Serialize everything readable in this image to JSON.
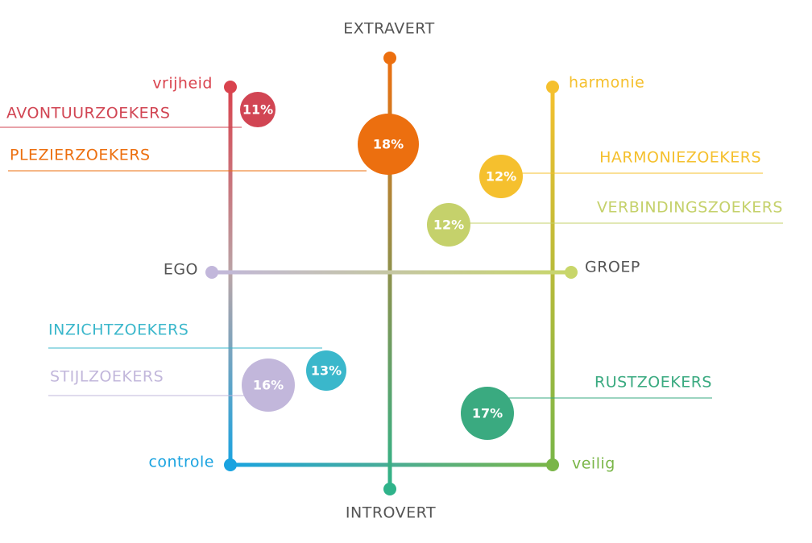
{
  "axes": {
    "top": "EXTRAVERT",
    "bottom": "INTROVERT",
    "left": "EGO",
    "right": "GROEP"
  },
  "corners": {
    "top_left": "vrijheid",
    "top_right": "harmonie",
    "bottom_left": "controle",
    "bottom_right": "veilig"
  },
  "segments": [
    {
      "name": "AVONTUURZOEKERS",
      "label": "11%"
    },
    {
      "name": "PLEZIERZOEKERS",
      "label": "18%"
    },
    {
      "name": "HARMONIEZOEKERS",
      "label": "12%"
    },
    {
      "name": "VERBINDINGSZOEKERS",
      "label": "12%"
    },
    {
      "name": "INZICHTZOEKERS",
      "label": "13%"
    },
    {
      "name": "STIJLZOEKERS",
      "label": "16%"
    },
    {
      "name": "RUSTZOEKERS",
      "label": "17%"
    }
  ]
}
